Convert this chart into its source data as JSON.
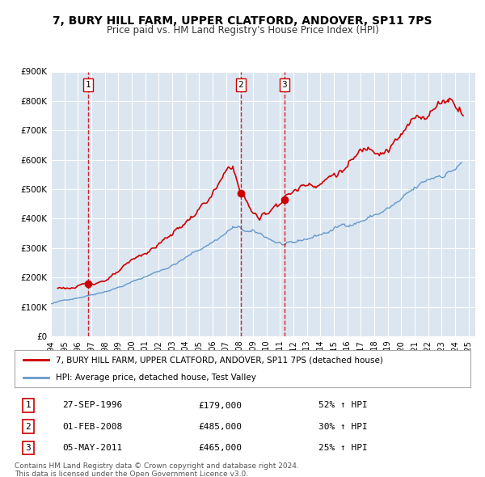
{
  "title": "7, BURY HILL FARM, UPPER CLATFORD, ANDOVER, SP11 7PS",
  "subtitle": "Price paid vs. HM Land Registry's House Price Index (HPI)",
  "background_color": "#ffffff",
  "plot_bg_color": "#dce6f1",
  "grid_color": "#ffffff",
  "ylim": [
    0,
    900000
  ],
  "yticks": [
    0,
    100000,
    200000,
    300000,
    400000,
    500000,
    600000,
    700000,
    800000,
    900000
  ],
  "ytick_labels": [
    "£0",
    "£100K",
    "£200K",
    "£300K",
    "£400K",
    "£500K",
    "£600K",
    "£700K",
    "£800K",
    "£900K"
  ],
  "xlim_start": 1994.0,
  "xlim_end": 2025.5,
  "xtick_years": [
    1994,
    1995,
    1996,
    1997,
    1998,
    1999,
    2000,
    2001,
    2002,
    2003,
    2004,
    2005,
    2006,
    2007,
    2008,
    2009,
    2010,
    2011,
    2012,
    2013,
    2014,
    2015,
    2016,
    2017,
    2018,
    2019,
    2020,
    2021,
    2022,
    2023,
    2024,
    2025
  ],
  "red_line_color": "#cc0000",
  "blue_line_color": "#6699cc",
  "marker_color": "#cc0000",
  "vline_color": "#cc0000",
  "transactions": [
    {
      "label": "1",
      "year": 1996.75,
      "value": 179000
    },
    {
      "label": "2",
      "year": 2008.08,
      "value": 485000
    },
    {
      "label": "3",
      "year": 2011.33,
      "value": 465000
    }
  ],
  "legend_entries": [
    "7, BURY HILL FARM, UPPER CLATFORD, ANDOVER, SP11 7PS (detached house)",
    "HPI: Average price, detached house, Test Valley"
  ],
  "table_rows": [
    {
      "num": "1",
      "date": "27-SEP-1996",
      "price": "£179,000",
      "hpi": "52% ↑ HPI"
    },
    {
      "num": "2",
      "date": "01-FEB-2008",
      "price": "£485,000",
      "hpi": "30% ↑ HPI"
    },
    {
      "num": "3",
      "date": "05-MAY-2011",
      "price": "£465,000",
      "hpi": "25% ↑ HPI"
    }
  ],
  "footer_line1": "Contains HM Land Registry data © Crown copyright and database right 2024.",
  "footer_line2": "This data is licensed under the Open Government Licence v3.0."
}
